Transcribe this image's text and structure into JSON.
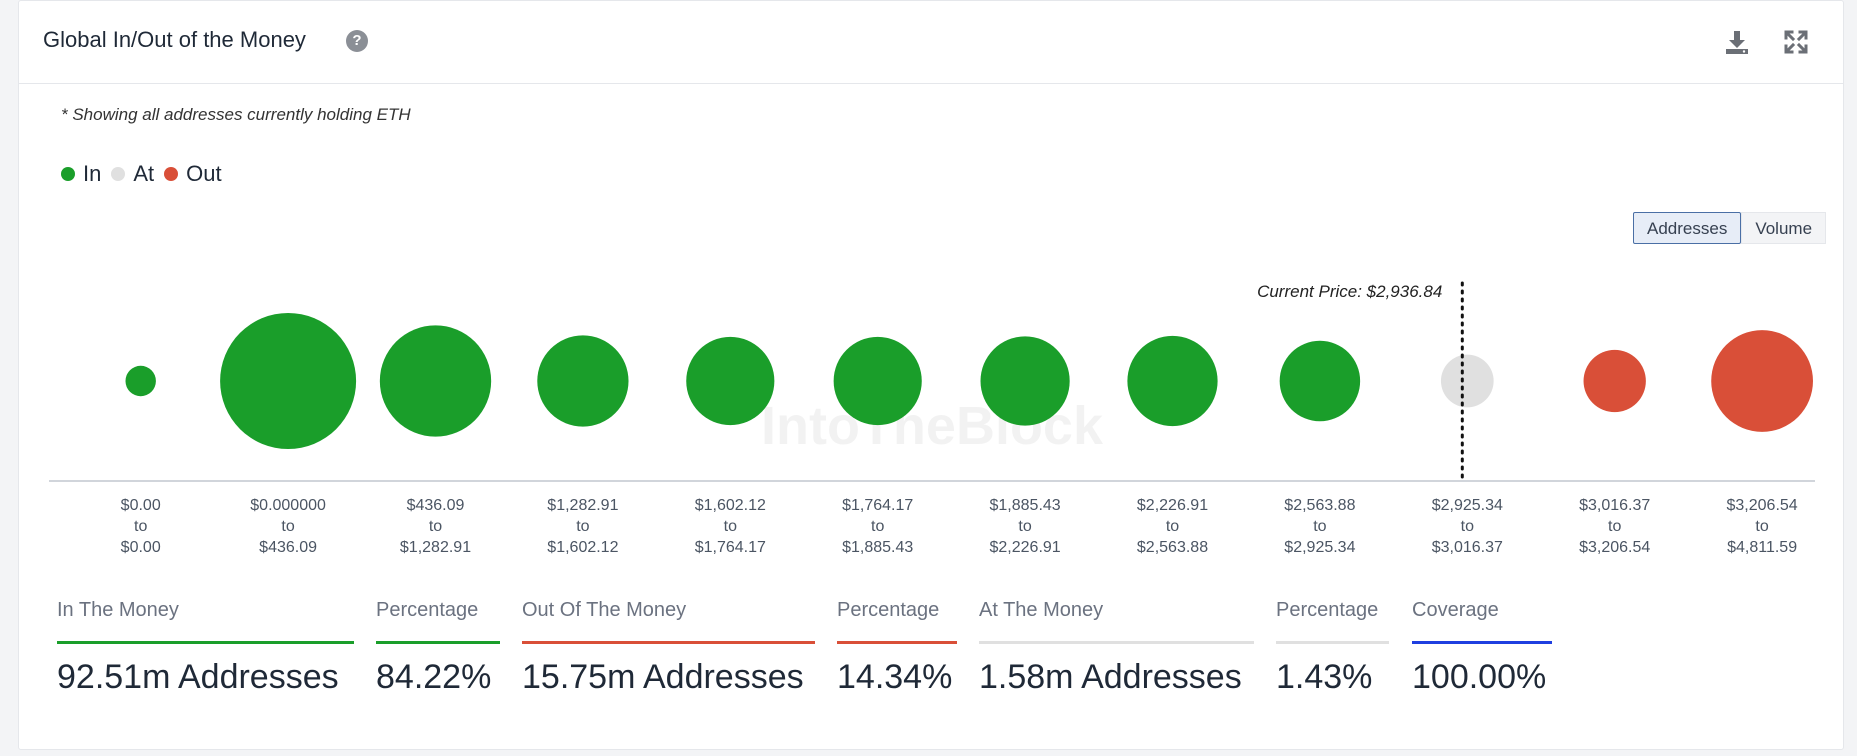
{
  "header": {
    "title": "Global In/Out of the Money",
    "help_icon": "question-circle-icon",
    "download_icon": "download-icon",
    "expand_icon": "expand-icon"
  },
  "note": "* Showing all addresses currently holding ETH",
  "legend": [
    {
      "label": "In",
      "color": "#1a9e2a"
    },
    {
      "label": "At",
      "color": "#e0e0e0"
    },
    {
      "label": "Out",
      "color": "#d94f38"
    }
  ],
  "toggle": {
    "addresses": "Addresses",
    "volume": "Volume",
    "selected": "Addresses"
  },
  "watermark": "IntoTheBlock",
  "chart_data": {
    "type": "bubble",
    "current_price_label": "Current Price: $2,936.84",
    "current_price": 2936.84,
    "categories": [
      {
        "from": "$0.00",
        "to": "$0.00"
      },
      {
        "from": "$0.000000",
        "to": "$436.09"
      },
      {
        "from": "$436.09",
        "to": "$1,282.91"
      },
      {
        "from": "$1,282.91",
        "to": "$1,602.12"
      },
      {
        "from": "$1,602.12",
        "to": "$1,764.17"
      },
      {
        "from": "$1,764.17",
        "to": "$1,885.43"
      },
      {
        "from": "$1,885.43",
        "to": "$2,226.91"
      },
      {
        "from": "$2,226.91",
        "to": "$2,563.88"
      },
      {
        "from": "$2,563.88",
        "to": "$2,925.34"
      },
      {
        "from": "$2,925.34",
        "to": "$3,016.37"
      },
      {
        "from": "$3,016.37",
        "to": "$3,206.54"
      },
      {
        "from": "$3,206.54",
        "to": "$4,811.59"
      }
    ],
    "to_word": "to",
    "status": [
      "In",
      "In",
      "In",
      "In",
      "In",
      "In",
      "In",
      "In",
      "In",
      "At",
      "Out",
      "Out"
    ],
    "relative_size": [
      0.05,
      1.0,
      0.67,
      0.45,
      0.42,
      0.42,
      0.43,
      0.44,
      0.35,
      0.15,
      0.21,
      0.56
    ],
    "grid": false,
    "legend_position": "top-left"
  },
  "stats": [
    {
      "label": "In The Money",
      "value": "92.51m Addresses",
      "color": "#1a9e2a"
    },
    {
      "label": "Percentage",
      "value": "84.22%",
      "color": "#1a9e2a"
    },
    {
      "label": "Out Of The Money",
      "value": "15.75m Addresses",
      "color": "#d94f38"
    },
    {
      "label": "Percentage",
      "value": "14.34%",
      "color": "#d94f38"
    },
    {
      "label": "At The Money",
      "value": "1.58m Addresses",
      "color": "#e0e0e0"
    },
    {
      "label": "Percentage",
      "value": "1.43%",
      "color": "#e0e0e0"
    },
    {
      "label": "Coverage",
      "value": "100.00%",
      "color": "#1f3fe0"
    }
  ]
}
